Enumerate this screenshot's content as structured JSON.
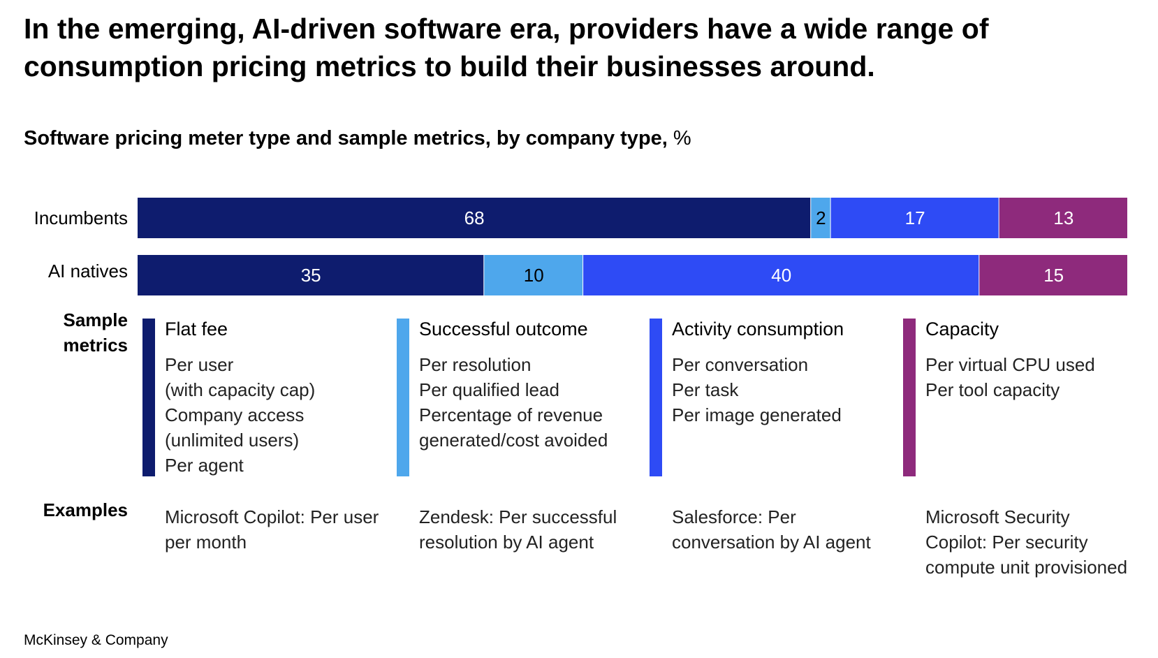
{
  "headline": "In the emerging, AI-driven software era, providers have a wide range of consumption pricing metrics to build their businesses around.",
  "subtitle": "Software pricing meter type and sample metrics, by company type,",
  "subtitle_unit": "%",
  "chart_data": {
    "type": "bar",
    "orientation": "horizontal",
    "stacked": true,
    "title": "Software pricing meter type and sample metrics, by company type, %",
    "categories": [
      "Incumbents",
      "AI natives"
    ],
    "series": [
      {
        "name": "Flat fee",
        "color": "#0E1C6E",
        "label_color": "#ffffff",
        "values": [
          68,
          35
        ]
      },
      {
        "name": "Successful outcome",
        "color": "#4EA7EC",
        "label_color": "#000000",
        "values": [
          2,
          10
        ]
      },
      {
        "name": "Activity consumption",
        "color": "#2E4BF5",
        "label_color": "#ffffff",
        "values": [
          17,
          40
        ]
      },
      {
        "name": "Capacity",
        "color": "#8E2A7C",
        "label_color": "#ffffff",
        "values": [
          13,
          15
        ]
      }
    ],
    "xlim": [
      0,
      100
    ],
    "xlabel": "",
    "ylabel": "",
    "grid": false
  },
  "labels": {
    "sample_metrics": "Sample metrics",
    "examples": "Examples"
  },
  "legend": [
    {
      "title": "Flat fee",
      "color": "#0E1C6E",
      "metrics": [
        "Per user",
        "(with capacity cap)",
        "Company access",
        "(unlimited users)",
        "Per agent"
      ],
      "example": "Microsoft Copilot: Per user per month"
    },
    {
      "title": "Successful outcome",
      "color": "#4EA7EC",
      "metrics": [
        "Per resolution",
        "Per qualified lead",
        "Percentage of revenue",
        "generated/cost avoided"
      ],
      "example": "Zendesk: Per successful resolution by AI agent"
    },
    {
      "title": "Activity consumption",
      "color": "#2E4BF5",
      "metrics": [
        "Per conversation",
        "Per task",
        "Per image generated"
      ],
      "example": "Salesforce: Per conversation by AI agent"
    },
    {
      "title": "Capacity",
      "color": "#8E2A7C",
      "metrics": [
        "Per virtual CPU used",
        "Per tool capacity"
      ],
      "example": "Microsoft Security Copilot: Per security compute unit provisioned"
    }
  ],
  "source": "McKinsey & Company"
}
